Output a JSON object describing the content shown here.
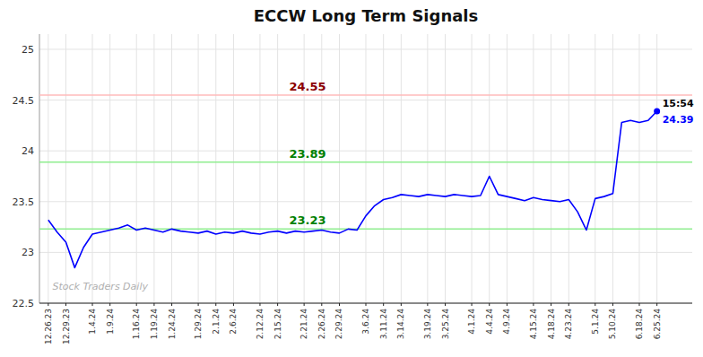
{
  "chart_data": {
    "type": "line",
    "title": "ECCW Long Term Signals",
    "color": "blue",
    "categories": [
      "12.26.23",
      null,
      "12.29.23",
      null,
      null,
      "1.4.24",
      null,
      "1.9.24",
      null,
      null,
      "1.16.24",
      null,
      "1.19.24",
      null,
      "1.24.24",
      null,
      null,
      "1.29.24",
      null,
      "2.1.24",
      null,
      "2.6.24",
      null,
      null,
      "2.12.24",
      null,
      "2.15.24",
      null,
      null,
      "2.21.24",
      null,
      "2.26.24",
      null,
      "2.29.24",
      null,
      null,
      "3.6.24",
      null,
      "3.11.24",
      null,
      "3.14.24",
      null,
      null,
      "3.19.24",
      null,
      "3.25.24",
      null,
      null,
      "4.1.24",
      null,
      "4.4.24",
      null,
      "4.9.24",
      null,
      null,
      "4.15.24",
      null,
      "4.18.24",
      null,
      "4.23.24",
      null,
      null,
      "5.1.24",
      null,
      "5.10.24",
      null,
      null,
      "6.18.24",
      null,
      "6.25.24"
    ],
    "values": [
      23.32,
      23.2,
      23.1,
      22.85,
      23.05,
      23.18,
      23.2,
      23.22,
      23.24,
      23.27,
      23.22,
      23.24,
      23.22,
      23.2,
      23.23,
      23.21,
      23.2,
      23.19,
      23.21,
      23.18,
      23.2,
      23.19,
      23.21,
      23.19,
      23.18,
      23.2,
      23.21,
      23.19,
      23.21,
      23.2,
      23.21,
      23.22,
      23.2,
      23.19,
      23.23,
      23.22,
      23.36,
      23.46,
      23.52,
      23.54,
      23.57,
      23.56,
      23.55,
      23.57,
      23.56,
      23.55,
      23.57,
      23.56,
      23.55,
      23.56,
      23.75,
      23.57,
      23.55,
      23.53,
      23.51,
      23.54,
      23.52,
      23.51,
      23.5,
      23.52,
      23.4,
      23.22,
      23.53,
      23.55,
      23.58,
      24.28,
      24.3,
      24.28,
      24.3,
      24.39
    ],
    "ylim": [
      22.5,
      25.15
    ],
    "yticks": [
      22.5,
      23,
      23.5,
      24,
      24.5,
      25
    ],
    "grid": true,
    "annotations": [
      {
        "type": "hline",
        "y": 24.55,
        "label": "24.55",
        "color": "#ffbbbb",
        "label_color": "darkred"
      },
      {
        "type": "hline",
        "y": 23.89,
        "label": "23.89",
        "color": "#90ee90",
        "label_color": "green"
      },
      {
        "type": "hline",
        "y": 23.23,
        "label": "23.23",
        "color": "#90ee90",
        "label_color": "green"
      },
      {
        "type": "point_label",
        "text": "15:54",
        "color": "black"
      },
      {
        "type": "point_label",
        "text": "24.39",
        "color": "blue"
      },
      {
        "type": "watermark",
        "text": "Stock Traders Daily",
        "color": "#b0b0b0"
      }
    ]
  }
}
